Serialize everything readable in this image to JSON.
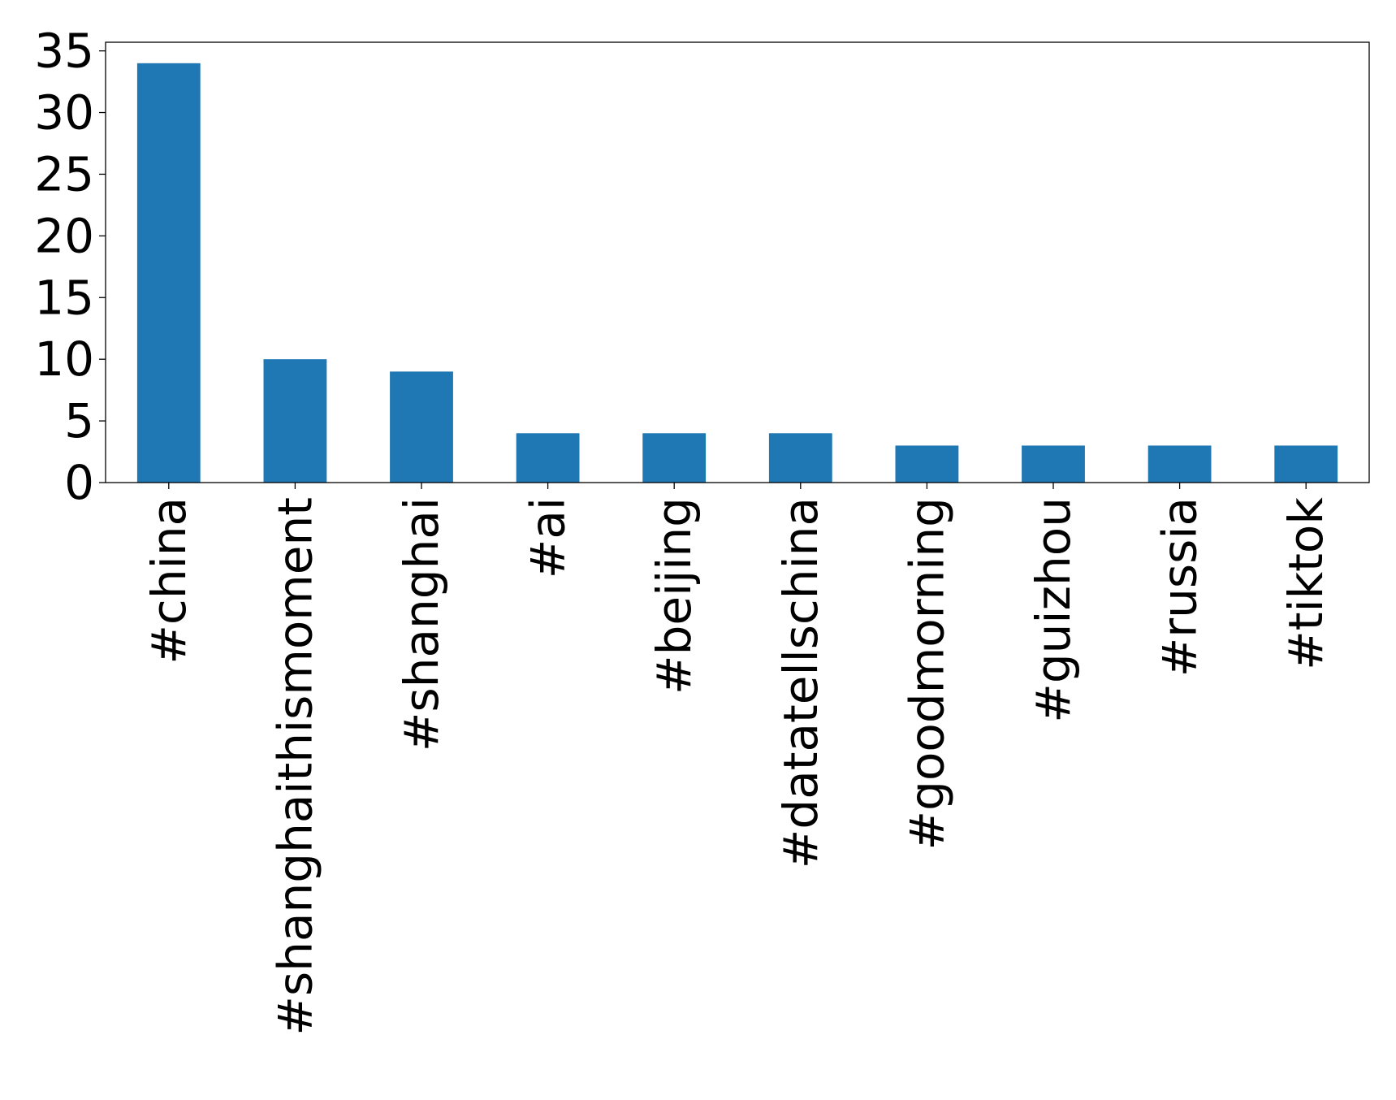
{
  "chart_data": {
    "type": "bar",
    "title": "",
    "xlabel": "",
    "ylabel": "",
    "categories": [
      "#china",
      "#shanghaithismoment",
      "#shanghai",
      "#ai",
      "#beijing",
      "#datatellschina",
      "#goodmorning",
      "#guizhou",
      "#russia",
      "#tiktok"
    ],
    "values": [
      34,
      10,
      9,
      4,
      4,
      4,
      3,
      3,
      3,
      3
    ],
    "ylim": [
      0,
      35.7
    ],
    "yticks": [
      0,
      5,
      10,
      15,
      20,
      25,
      30,
      35
    ],
    "ytick_labels": [
      "0",
      "5",
      "10",
      "15",
      "20",
      "25",
      "30",
      "35"
    ],
    "grid": false,
    "legend": "none",
    "colors": {
      "bar": "#1f77b4"
    }
  }
}
